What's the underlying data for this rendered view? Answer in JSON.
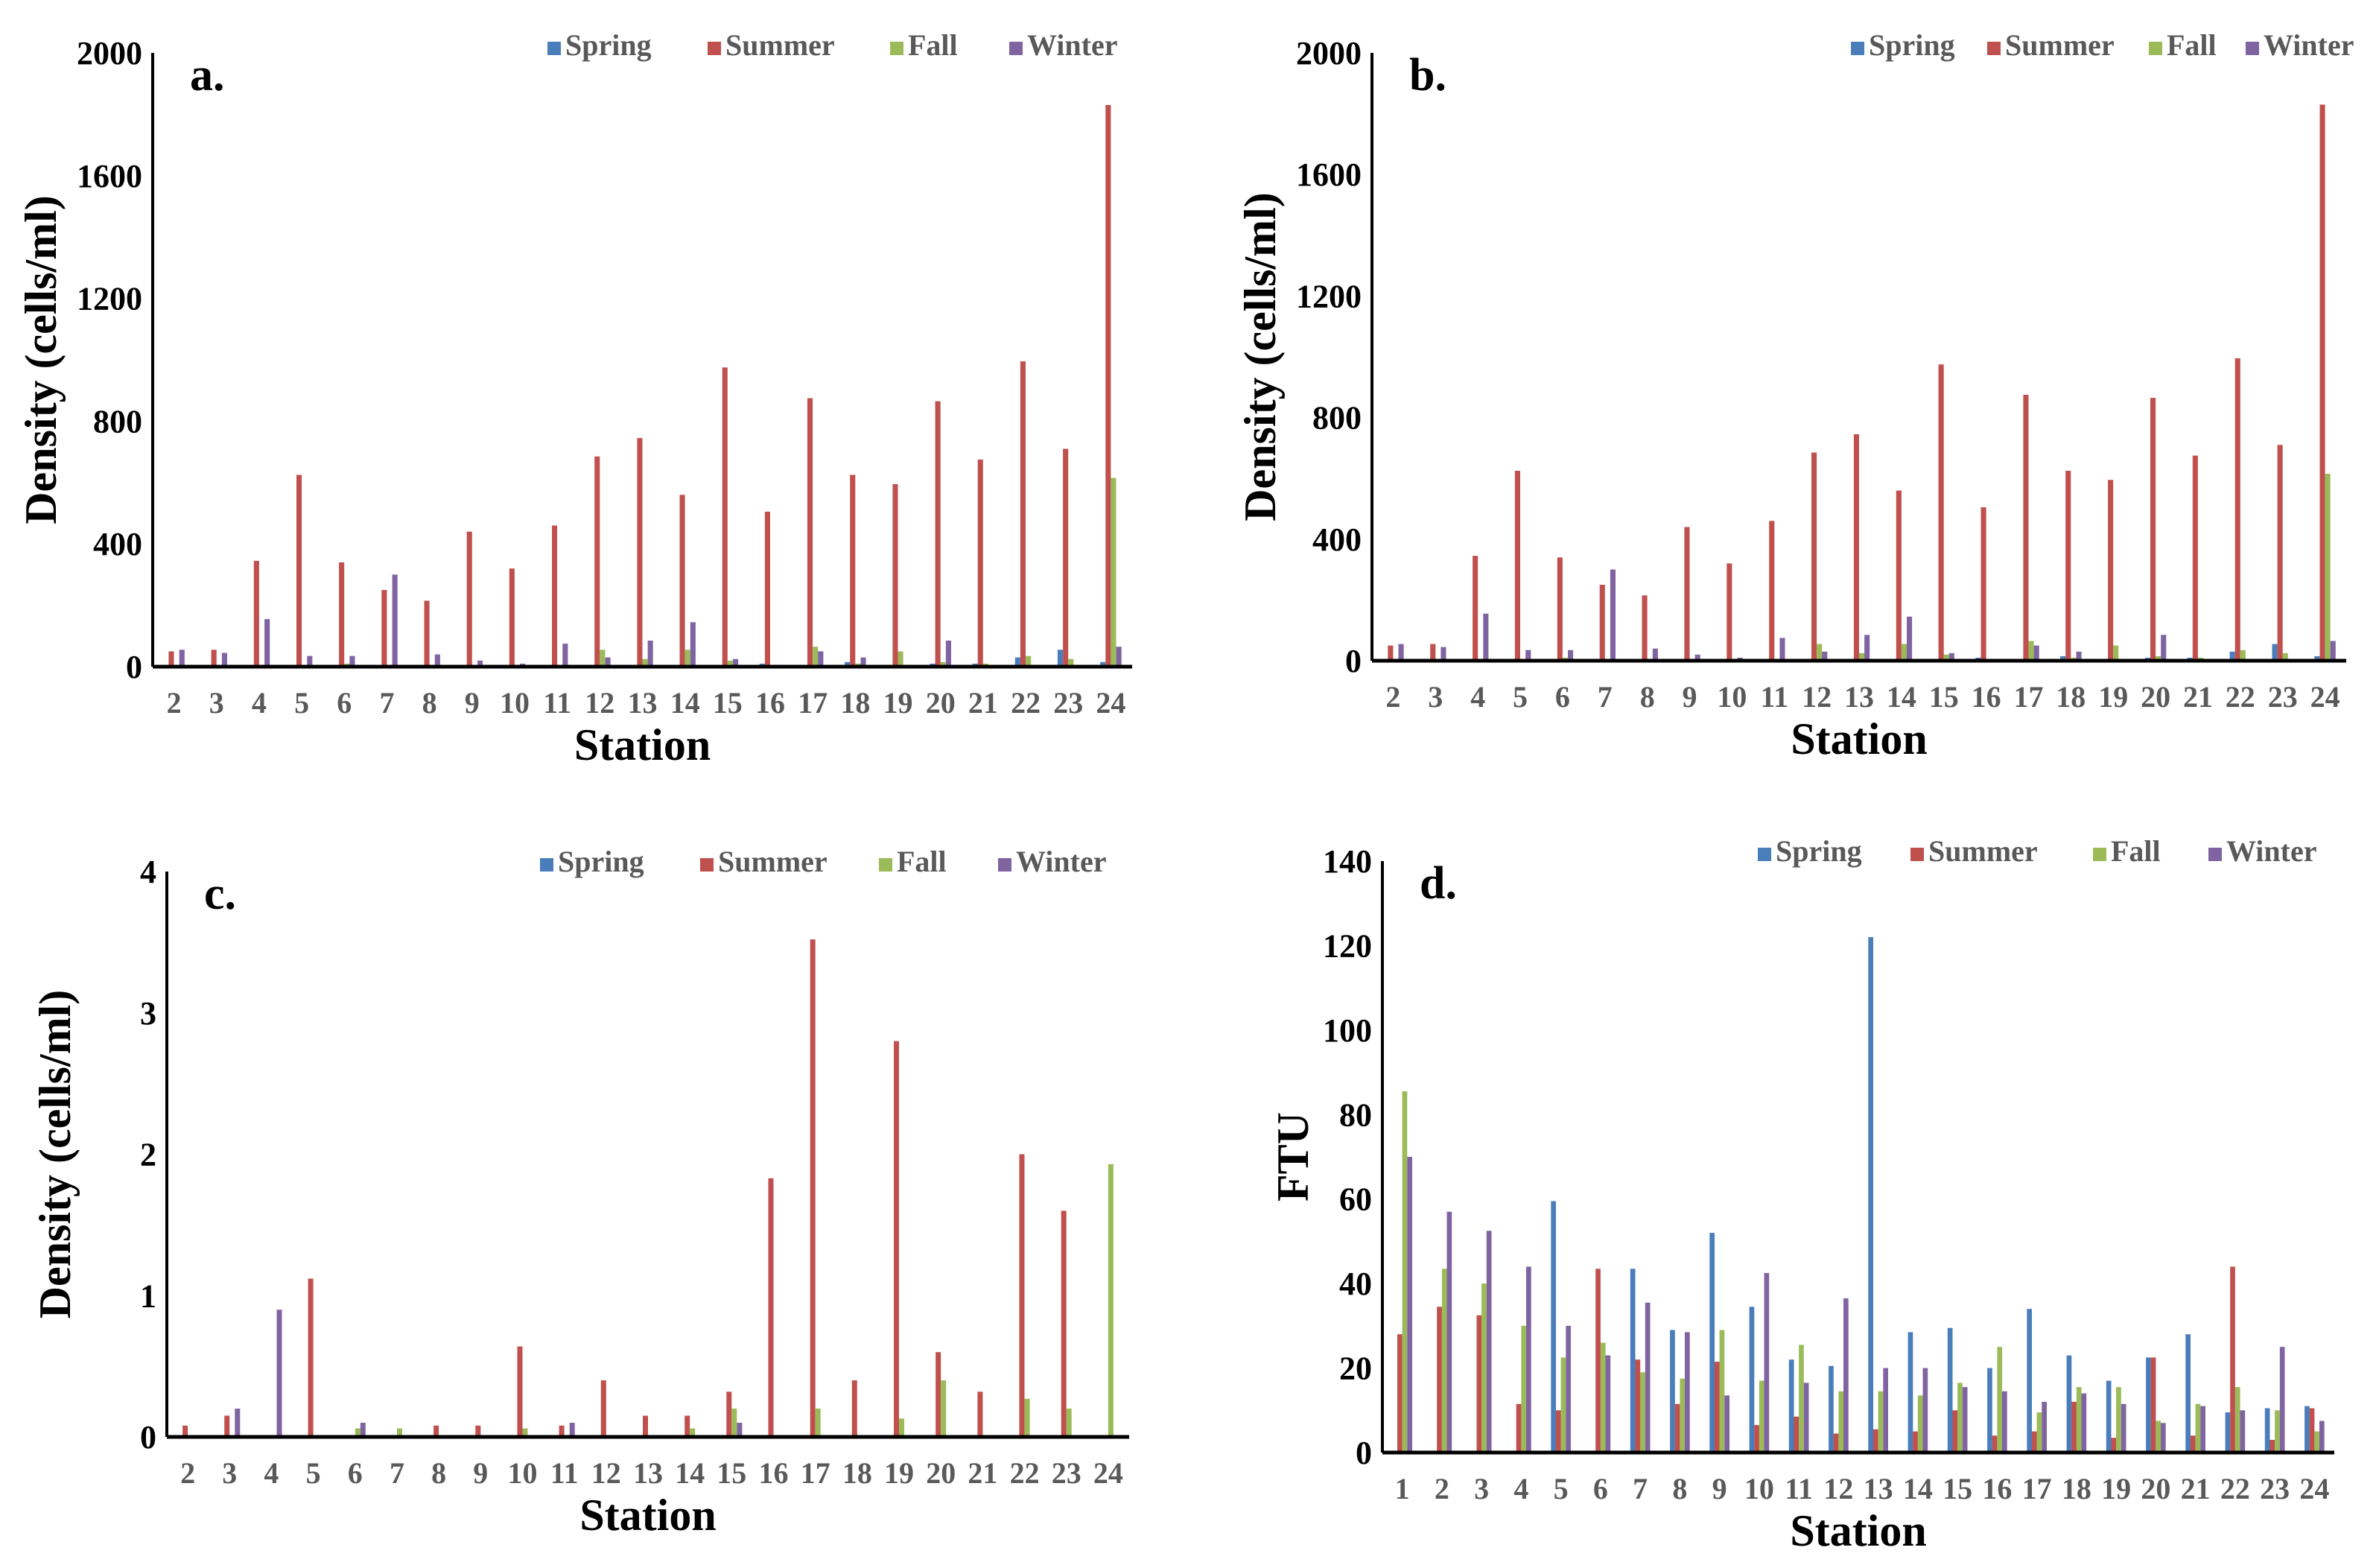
{
  "colors": {
    "Spring": "#4a7ebb",
    "Summer": "#c0504d",
    "Fall": "#9bbb59",
    "Winter": "#8064a2"
  },
  "chart_data": [
    {
      "type": "bar",
      "panel_label": "a.",
      "xlabel": "Station",
      "ylabel": "Density (cells/ml)",
      "ylim": [
        0,
        2000
      ],
      "yticks": [
        0,
        400,
        800,
        1200,
        1600,
        2000
      ],
      "grid": false,
      "legend": "top-right",
      "categories": [
        "2",
        "3",
        "4",
        "5",
        "6",
        "7",
        "8",
        "9",
        "10",
        "11",
        "12",
        "13",
        "14",
        "15",
        "16",
        "17",
        "18",
        "19",
        "20",
        "21",
        "22",
        "23",
        "24"
      ],
      "series": [
        {
          "name": "Spring",
          "values": [
            0,
            0,
            0,
            0,
            0,
            0,
            0,
            0,
            0,
            0,
            0,
            0,
            0,
            0,
            10,
            0,
            15,
            5,
            10,
            10,
            30,
            55,
            15
          ]
        },
        {
          "name": "Summer",
          "values": [
            50,
            55,
            345,
            625,
            340,
            250,
            215,
            440,
            320,
            460,
            685,
            745,
            560,
            975,
            505,
            875,
            625,
            595,
            865,
            675,
            995,
            710,
            1830
          ]
        },
        {
          "name": "Fall",
          "values": [
            0,
            0,
            0,
            0,
            10,
            0,
            0,
            0,
            0,
            0,
            55,
            25,
            55,
            20,
            5,
            65,
            10,
            50,
            15,
            10,
            35,
            25,
            615
          ]
        },
        {
          "name": "Winter",
          "values": [
            55,
            45,
            155,
            35,
            35,
            300,
            40,
            20,
            10,
            75,
            30,
            85,
            145,
            25,
            0,
            50,
            30,
            0,
            85,
            0,
            5,
            5,
            65
          ]
        }
      ]
    },
    {
      "type": "bar",
      "panel_label": "b.",
      "xlabel": "Station",
      "ylabel": "Density (cells/ml)",
      "ylim": [
        0,
        2000
      ],
      "yticks": [
        0,
        400,
        800,
        1200,
        1600,
        2000
      ],
      "grid": false,
      "legend": "top-right",
      "categories": [
        "2",
        "3",
        "4",
        "5",
        "6",
        "7",
        "8",
        "9",
        "10",
        "11",
        "12",
        "13",
        "14",
        "15",
        "16",
        "17",
        "18",
        "19",
        "20",
        "21",
        "22",
        "23",
        "24"
      ],
      "series": [
        {
          "name": "Spring",
          "values": [
            0,
            0,
            0,
            0,
            0,
            0,
            0,
            0,
            0,
            0,
            0,
            0,
            0,
            0,
            10,
            0,
            15,
            5,
            10,
            10,
            30,
            55,
            15
          ]
        },
        {
          "name": "Summer",
          "values": [
            50,
            55,
            345,
            625,
            340,
            250,
            215,
            440,
            320,
            460,
            685,
            745,
            560,
            975,
            505,
            875,
            625,
            595,
            865,
            675,
            995,
            710,
            1830
          ]
        },
        {
          "name": "Fall",
          "values": [
            0,
            0,
            0,
            0,
            10,
            0,
            0,
            0,
            0,
            0,
            55,
            25,
            55,
            20,
            5,
            65,
            10,
            50,
            15,
            10,
            35,
            25,
            615
          ]
        },
        {
          "name": "Winter",
          "values": [
            55,
            45,
            155,
            35,
            35,
            300,
            40,
            20,
            10,
            75,
            30,
            85,
            145,
            25,
            0,
            50,
            30,
            0,
            85,
            0,
            5,
            5,
            65
          ]
        }
      ]
    },
    {
      "type": "bar",
      "panel_label": "c.",
      "xlabel": "Station",
      "ylabel": "Density (cells/ml)",
      "ylim": [
        0,
        4
      ],
      "yticks": [
        0,
        1,
        2,
        3,
        4
      ],
      "grid": false,
      "legend": "top-right",
      "categories": [
        "2",
        "3",
        "4",
        "5",
        "6",
        "7",
        "8",
        "9",
        "10",
        "11",
        "12",
        "13",
        "14",
        "15",
        "16",
        "17",
        "18",
        "19",
        "20",
        "21",
        "22",
        "23",
        "24"
      ],
      "series": [
        {
          "name": "Spring",
          "values": [
            0,
            0,
            0,
            0,
            0,
            0,
            0,
            0,
            0,
            0,
            0,
            0,
            0,
            0,
            0,
            0,
            0,
            0,
            0,
            0,
            0,
            0,
            0
          ]
        },
        {
          "name": "Summer",
          "values": [
            0.08,
            0.15,
            0,
            1.12,
            0,
            0,
            0.08,
            0.08,
            0.64,
            0.08,
            0.4,
            0.15,
            0.15,
            0.32,
            1.83,
            3.52,
            0.4,
            2.8,
            0.6,
            0.32,
            2.0,
            1.6,
            0
          ]
        },
        {
          "name": "Fall",
          "values": [
            0,
            0,
            0,
            0,
            0.06,
            0.06,
            0,
            0,
            0.06,
            0,
            0,
            0,
            0.06,
            0.2,
            0,
            0.2,
            0,
            0.13,
            0.4,
            0,
            0.27,
            0.2,
            1.93
          ]
        },
        {
          "name": "Winter",
          "values": [
            0,
            0.2,
            0.9,
            0,
            0.1,
            0,
            0,
            0,
            0,
            0.1,
            0,
            0,
            0,
            0.1,
            0,
            0,
            0,
            0,
            0,
            0,
            0,
            0,
            0
          ]
        }
      ]
    },
    {
      "type": "bar",
      "panel_label": "d.",
      "xlabel": "Station",
      "ylabel": "FTU",
      "ylim": [
        0,
        140
      ],
      "yticks": [
        0,
        20,
        40,
        60,
        80,
        100,
        120,
        140
      ],
      "grid": false,
      "legend": "top-right",
      "categories": [
        "1",
        "2",
        "3",
        "4",
        "5",
        "6",
        "7",
        "8",
        "9",
        "10",
        "11",
        "12",
        "13",
        "14",
        "15",
        "16",
        "17",
        "18",
        "19",
        "20",
        "21",
        "22",
        "23",
        "24"
      ],
      "series": [
        {
          "name": "Spring",
          "values": [
            0,
            0,
            0,
            0,
            59.5,
            0,
            43.5,
            29,
            52,
            34.5,
            22,
            20.5,
            122,
            28.5,
            29.5,
            20,
            34,
            23,
            17,
            22.5,
            28,
            9.5,
            10.5,
            11
          ]
        },
        {
          "name": "Summer",
          "values": [
            28,
            34.5,
            32.5,
            11.5,
            10,
            43.5,
            22,
            11.5,
            21.5,
            6.5,
            8.5,
            4.5,
            5.5,
            5,
            10,
            4,
            5,
            12,
            3.5,
            22.5,
            4,
            44,
            3,
            10.5
          ]
        },
        {
          "name": "Fall",
          "values": [
            85.5,
            43.5,
            40,
            30,
            22.5,
            26,
            19,
            17.5,
            29,
            17,
            25.5,
            14.5,
            14.5,
            13.5,
            16.5,
            25,
            9.5,
            15.5,
            15.5,
            7.5,
            11.5,
            15.5,
            10,
            5
          ]
        },
        {
          "name": "Winter",
          "values": [
            70,
            57,
            52.5,
            44,
            30,
            23,
            35.5,
            28.5,
            13.5,
            42.5,
            16.5,
            36.5,
            20,
            20,
            15.5,
            14.5,
            12,
            14,
            11.5,
            7,
            11,
            10,
            25,
            7.5
          ]
        }
      ]
    }
  ]
}
